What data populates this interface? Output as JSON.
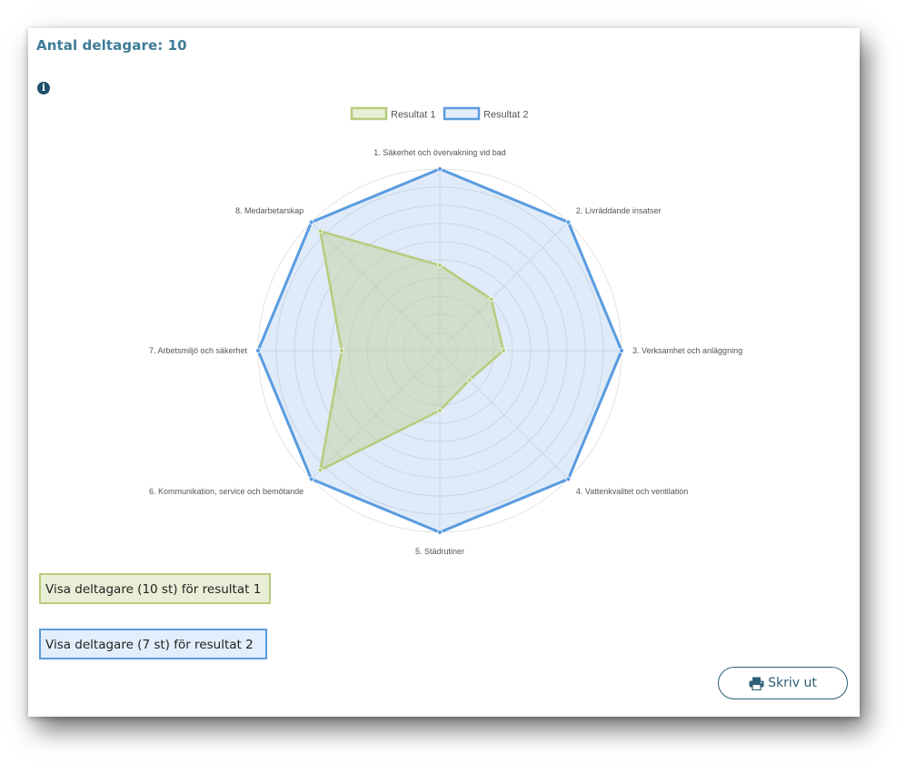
{
  "header": {
    "title": "Antal deltagare: 10"
  },
  "icons": {
    "info": "info-icon",
    "print": "print-icon"
  },
  "buttons": {
    "result1": "Visa deltagare (10 st) för resultat 1",
    "result2": "Visa deltagare (7 st) för resultat 2",
    "print": "Skriv ut"
  },
  "colors": {
    "result1_stroke": "#b7cc7c",
    "result1_fill": "#e9efd6",
    "result2_stroke": "#5a9be0",
    "result2_fill": "#e2eefb",
    "title": "#3d7c96",
    "print_border": "#2e5f77"
  },
  "chart_data": {
    "type": "radar",
    "categories": [
      "1. Säkerhet och övervakning vid bad",
      "2. Livräddande insatser",
      "3. Verksamhet och anläggning",
      "4. Vattenkvalitet och ventilation",
      "5. Städrutiner",
      "6. Kommunikation, service och bemötande",
      "7. Arbetsmiljö och säkerhet",
      "8. Medarbetarskap"
    ],
    "series": [
      {
        "name": "Resultat 1",
        "values": [
          47,
          40,
          35,
          23,
          33,
          93,
          54,
          93
        ]
      },
      {
        "name": "Resultat 2",
        "values": [
          100,
          100,
          100,
          100,
          100,
          100,
          100,
          100
        ]
      }
    ],
    "rlim": [
      0,
      100
    ],
    "rticks": 10,
    "grid": true,
    "legend_position": "top"
  }
}
